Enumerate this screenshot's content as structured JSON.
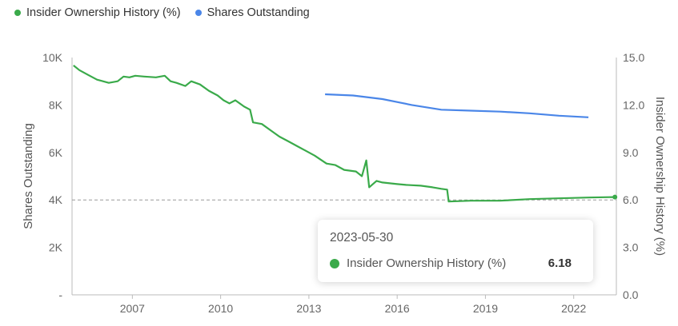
{
  "colors": {
    "insider": "#3aaa4a",
    "shares": "#4a86e8",
    "axis": "#888888",
    "grid": "#999999"
  },
  "chart_data": {
    "type": "line",
    "series": [
      {
        "name": "Insider Ownership History (%)",
        "axis": "right",
        "points": [
          [
            2005.0,
            14.5
          ],
          [
            2005.2,
            14.2
          ],
          [
            2005.5,
            13.9
          ],
          [
            2005.8,
            13.6
          ],
          [
            2006.0,
            13.5
          ],
          [
            2006.2,
            13.4
          ],
          [
            2006.5,
            13.5
          ],
          [
            2006.7,
            13.8
          ],
          [
            2006.9,
            13.75
          ],
          [
            2007.1,
            13.85
          ],
          [
            2007.4,
            13.8
          ],
          [
            2007.8,
            13.75
          ],
          [
            2008.1,
            13.85
          ],
          [
            2008.3,
            13.5
          ],
          [
            2008.5,
            13.4
          ],
          [
            2008.8,
            13.2
          ],
          [
            2009.0,
            13.5
          ],
          [
            2009.3,
            13.3
          ],
          [
            2009.6,
            12.9
          ],
          [
            2009.9,
            12.6
          ],
          [
            2010.1,
            12.3
          ],
          [
            2010.3,
            12.1
          ],
          [
            2010.5,
            12.3
          ],
          [
            2010.8,
            11.9
          ],
          [
            2011.0,
            11.7
          ],
          [
            2011.1,
            10.9
          ],
          [
            2011.4,
            10.8
          ],
          [
            2011.7,
            10.4
          ],
          [
            2012.0,
            10.0
          ],
          [
            2012.3,
            9.7
          ],
          [
            2012.6,
            9.4
          ],
          [
            2012.9,
            9.1
          ],
          [
            2013.2,
            8.8
          ],
          [
            2013.6,
            8.3
          ],
          [
            2013.9,
            8.2
          ],
          [
            2014.2,
            7.9
          ],
          [
            2014.6,
            7.8
          ],
          [
            2014.8,
            7.5
          ],
          [
            2014.95,
            8.5
          ],
          [
            2015.05,
            6.8
          ],
          [
            2015.3,
            7.2
          ],
          [
            2015.5,
            7.1
          ],
          [
            2016.0,
            7.0
          ],
          [
            2016.3,
            6.95
          ],
          [
            2016.8,
            6.9
          ],
          [
            2017.2,
            6.8
          ],
          [
            2017.5,
            6.7
          ],
          [
            2017.7,
            6.65
          ],
          [
            2017.75,
            5.9
          ],
          [
            2018.5,
            5.95
          ],
          [
            2019.5,
            5.95
          ],
          [
            2020.5,
            6.05
          ],
          [
            2021.5,
            6.1
          ],
          [
            2022.5,
            6.15
          ],
          [
            2023.4,
            6.18
          ]
        ]
      },
      {
        "name": "Shares Outstanding",
        "axis": "left",
        "points": [
          [
            2013.55,
            8450
          ],
          [
            2014.5,
            8400
          ],
          [
            2015.5,
            8250
          ],
          [
            2016.5,
            8000
          ],
          [
            2017.5,
            7800
          ],
          [
            2018.5,
            7760
          ],
          [
            2019.5,
            7720
          ],
          [
            2020.5,
            7650
          ],
          [
            2021.5,
            7550
          ],
          [
            2022.5,
            7480
          ]
        ]
      }
    ],
    "x_range": [
      2004.95,
      2023.45
    ],
    "x_ticks": [
      "2007",
      "2010",
      "2013",
      "2016",
      "2019",
      "2022"
    ],
    "x_tick_values": [
      2007,
      2010,
      2013,
      2016,
      2019,
      2022
    ],
    "left_axis": {
      "label": "Shares Outstanding",
      "range": [
        0,
        10000
      ],
      "ticks": [
        "-",
        "2K",
        "4K",
        "6K",
        "8K",
        "10K"
      ],
      "tick_values": [
        0,
        2000,
        4000,
        6000,
        8000,
        10000
      ]
    },
    "right_axis": {
      "label": "Insider Ownership History (%)",
      "range": [
        0,
        15
      ],
      "ticks": [
        "0.0",
        "3.0",
        "6.0",
        "9.0",
        "12.0",
        "15.0"
      ],
      "tick_values": [
        0,
        3,
        6,
        9,
        12,
        15
      ]
    },
    "reference_line": {
      "axis": "right",
      "value": 6.0,
      "style": "dashed"
    },
    "legend_position": "top-left",
    "grid": false
  },
  "legend": {
    "items": [
      {
        "label": "Insider Ownership History (%)"
      },
      {
        "label": "Shares Outstanding"
      }
    ]
  },
  "tooltip": {
    "date": "2023-05-30",
    "series_label": "Insider Ownership History (%)",
    "value": "6.18"
  }
}
